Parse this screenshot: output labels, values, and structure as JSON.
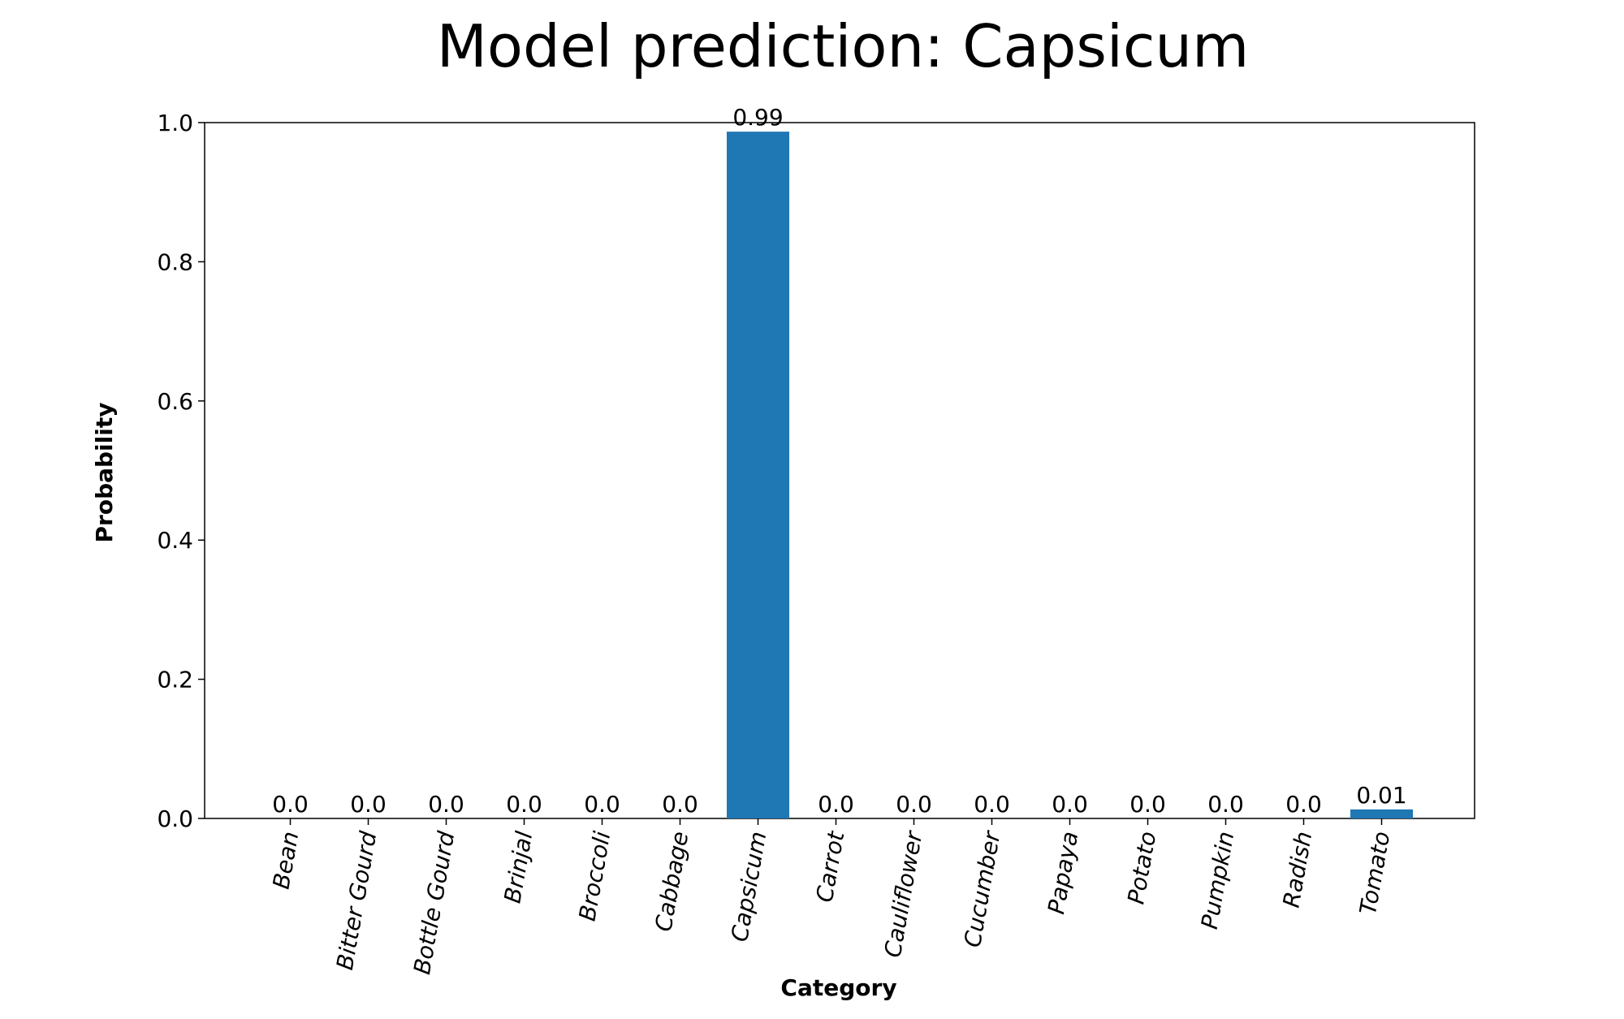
{
  "chart_data": {
    "type": "bar",
    "title": "Model prediction: Capsicum",
    "xlabel": "Category",
    "ylabel": "Probability",
    "ylim": [
      0,
      1.0
    ],
    "yticks": [
      "0.0",
      "0.2",
      "0.4",
      "0.6",
      "0.8",
      "1.0"
    ],
    "ytick_values": [
      0,
      0.2,
      0.4,
      0.6,
      0.8,
      1.0
    ],
    "categories": [
      "Bean",
      "Bitter Gourd",
      "Bottle Gourd",
      "Brinjal",
      "Broccoli",
      "Cabbage",
      "Capsicum",
      "Carrot",
      "Cauliflower",
      "Cucumber",
      "Papaya",
      "Potato",
      "Pumpkin",
      "Radish",
      "Tomato"
    ],
    "values": [
      0.0,
      0.0,
      0.0,
      0.0,
      0.0,
      0.0,
      0.987,
      0.0,
      0.0,
      0.0,
      0.0,
      0.0,
      0.0,
      0.0,
      0.013
    ],
    "value_labels": [
      "0.0",
      "0.0",
      "0.0",
      "0.0",
      "0.0",
      "0.0",
      "0.99",
      "0.0",
      "0.0",
      "0.0",
      "0.0",
      "0.0",
      "0.0",
      "0.0",
      "0.01"
    ],
    "bar_color": "#1f77b4",
    "grid": false,
    "legend": "none"
  }
}
